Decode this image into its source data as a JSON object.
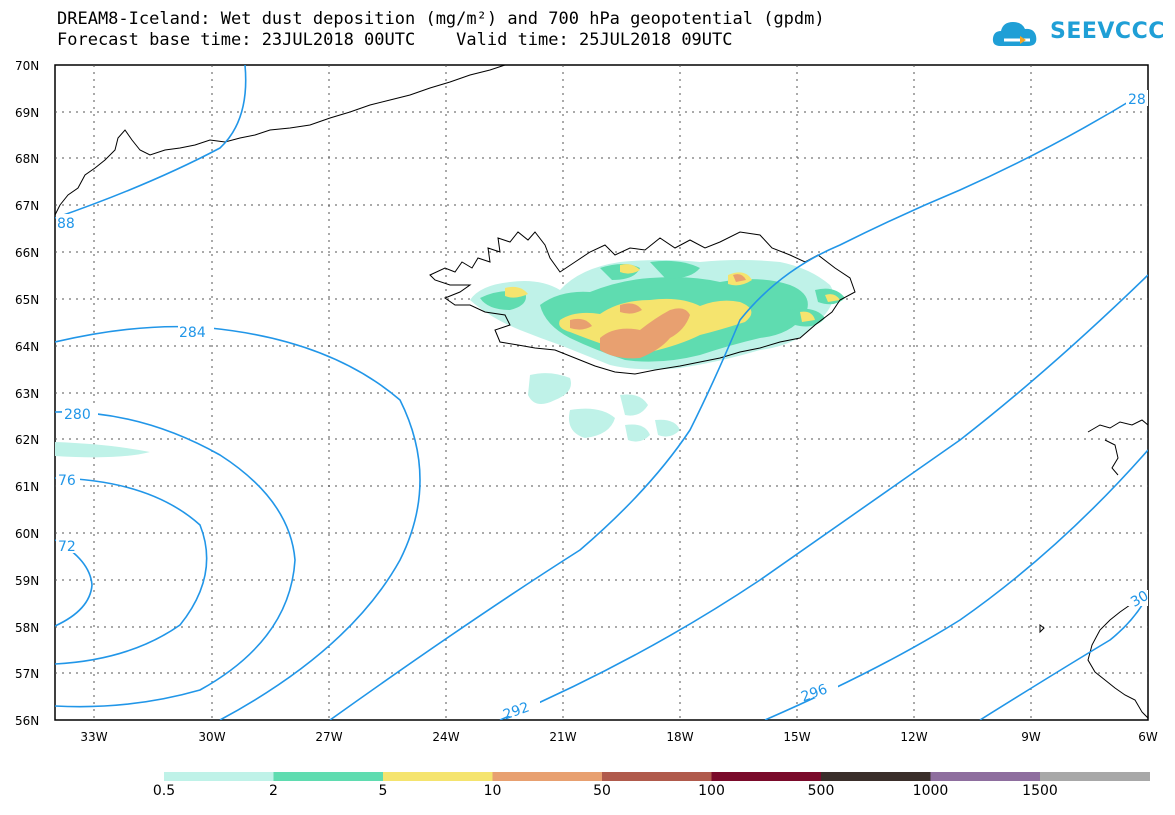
{
  "title_line1": "DREAM8-Iceland: Wet dust deposition (mg/m²) and 700 hPa geopotential (gpdm)",
  "title_line2": "Forecast base time: 23JUL2018 00UTC    Valid time: 25JUL2018 09UTC",
  "logo_text": "SEEVCCC",
  "lat_labels": [
    "70N",
    "69N",
    "68N",
    "67N",
    "66N",
    "65N",
    "64N",
    "63N",
    "62N",
    "61N",
    "60N",
    "59N",
    "58N",
    "57N",
    "56N"
  ],
  "lon_labels": [
    "33W",
    "30W",
    "27W",
    "24W",
    "21W",
    "18W",
    "15W",
    "12W",
    "9W",
    "6W"
  ],
  "contour_labels": {
    "c284": "284",
    "c280": "280",
    "c276": "76",
    "c272": "72",
    "c288a": "88",
    "c288b": "28",
    "c292": "292",
    "c296": "296",
    "c300": "30"
  },
  "legend": {
    "colors": [
      "#bff2e8",
      "#5fdcb0",
      "#f5e46e",
      "#e8a070",
      "#b05a4c",
      "#7a0a2a",
      "#3a2e2a",
      "#8e6e9e",
      "#a8a8a8"
    ],
    "labels": [
      "0.5",
      "2",
      "5",
      "10",
      "50",
      "100",
      "500",
      "1000",
      "1500"
    ]
  },
  "colors": {
    "contour": "#2196e8",
    "grid": "#555555"
  }
}
